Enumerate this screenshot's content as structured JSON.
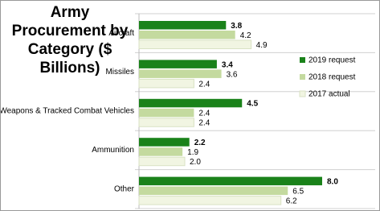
{
  "chart_data": {
    "type": "bar",
    "orientation": "horizontal",
    "title": "Army Procurement by Category ($ Billions)",
    "categories": [
      "Aircraft",
      "Missiles",
      "Weapons & Tracked Combat Vehicles",
      "Ammunition",
      "Other"
    ],
    "series": [
      {
        "name": "2019 request",
        "color": "#1a821a",
        "values": [
          3.8,
          3.4,
          4.5,
          2.2,
          8.0
        ],
        "value_labels": [
          "3.8",
          "3.4",
          "4.5",
          "2.2",
          "8.0"
        ]
      },
      {
        "name": "2018 request",
        "color": "#c4da9f",
        "values": [
          4.2,
          3.6,
          2.4,
          1.9,
          6.5
        ],
        "value_labels": [
          "4.2",
          "3.6",
          "2.4",
          "1.9",
          "6.5"
        ]
      },
      {
        "name": "2017 actual",
        "color": "#f1f5e2",
        "values": [
          4.9,
          2.4,
          2.4,
          2.0,
          6.2
        ],
        "value_labels": [
          "4.9",
          "2.4",
          "2.4",
          "2.0",
          "6.2"
        ]
      }
    ],
    "xlim": [
      0,
      10
    ],
    "legend": "right"
  }
}
